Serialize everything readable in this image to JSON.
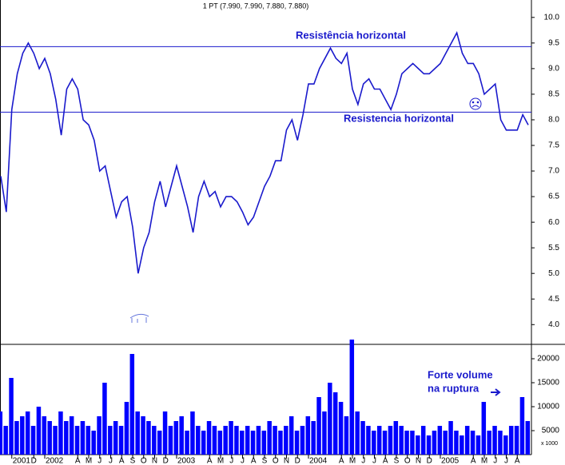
{
  "chart_data": [
    {
      "type": "line",
      "title": "1 PT (7.990, 7.990, 7.880, 7.880)",
      "color": "#1a1acc",
      "values": [
        6.9,
        6.2,
        8.2,
        8.9,
        9.3,
        9.5,
        9.3,
        9.0,
        9.2,
        8.9,
        8.4,
        7.7,
        8.6,
        8.8,
        8.6,
        8.0,
        7.9,
        7.6,
        7.0,
        7.1,
        6.6,
        6.1,
        6.4,
        6.5,
        5.9,
        5.0,
        5.5,
        5.8,
        6.4,
        6.8,
        6.3,
        6.7,
        7.1,
        6.7,
        6.3,
        5.8,
        6.5,
        6.8,
        6.5,
        6.6,
        6.3,
        6.5,
        6.5,
        6.4,
        6.2,
        5.95,
        6.1,
        6.4,
        6.7,
        6.9,
        7.2,
        7.2,
        7.8,
        8.0,
        7.6,
        8.1,
        8.7,
        8.7,
        9.0,
        9.2,
        9.4,
        9.2,
        9.1,
        9.3,
        8.6,
        8.3,
        8.7,
        8.8,
        8.6,
        8.6,
        8.4,
        8.2,
        8.5,
        8.9,
        9.0,
        9.1,
        9.0,
        8.9,
        8.9,
        9.0,
        9.1,
        9.3,
        9.5,
        9.7,
        9.3,
        9.1,
        9.1,
        8.9,
        8.5,
        8.6,
        8.7,
        8.0,
        7.8,
        7.8,
        7.8,
        8.1,
        7.9
      ],
      "ylim": [
        3.63,
        10.34
      ],
      "yticks": [
        {
          "value": 4,
          "label": "4.0"
        },
        4.5,
        {
          "value": 5,
          "label": "5.0"
        },
        5.5,
        {
          "value": 6,
          "label": "6.0"
        },
        6.5,
        {
          "value": 7,
          "label": "7.0"
        },
        7.5,
        {
          "value": 8,
          "label": "8.0"
        },
        8.5,
        {
          "value": 9,
          "label": "9.0"
        },
        9.5,
        {
          "value": 10,
          "label": "10.0"
        }
      ],
      "hlines": [
        9.43,
        8.15
      ],
      "annotations": [
        "Resistência horizontal",
        "Resistencia horizontal"
      ]
    },
    {
      "type": "bar",
      "color": "#0000ff",
      "categories": [
        null,
        null,
        "2001",
        null,
        null,
        null,
        "D",
        null,
        "2002",
        null,
        null,
        null,
        null,
        null,
        "A",
        null,
        "M",
        null,
        "J",
        null,
        "J",
        null,
        "A",
        null,
        "S",
        null,
        "O",
        null,
        "N",
        null,
        "D",
        null,
        "2003",
        null,
        null,
        null,
        null,
        null,
        "A",
        null,
        "M",
        null,
        "J",
        null,
        "J",
        null,
        "A",
        null,
        "S",
        null,
        "O",
        null,
        "N",
        null,
        "D",
        null,
        "2004",
        null,
        null,
        null,
        null,
        null,
        "A",
        null,
        "M",
        null,
        "J",
        null,
        "J",
        null,
        "A",
        null,
        "S",
        null,
        "O",
        null,
        "N",
        null,
        "D",
        null,
        "2005",
        null,
        null,
        null,
        null,
        null,
        "A",
        null,
        "M",
        null,
        "J",
        null,
        "J",
        null,
        "A",
        null,
        null
      ],
      "values": [
        9000,
        6000,
        16000,
        7000,
        8000,
        9000,
        6000,
        10000,
        8000,
        7000,
        6000,
        9000,
        7000,
        8000,
        6000,
        7000,
        6000,
        5000,
        8000,
        15000,
        6000,
        7000,
        6000,
        11000,
        21000,
        9000,
        8000,
        7000,
        6000,
        5000,
        9000,
        6000,
        7000,
        8000,
        5000,
        9000,
        6000,
        5000,
        7000,
        6000,
        5000,
        6000,
        7000,
        6000,
        5000,
        6000,
        5000,
        6000,
        5000,
        7000,
        6000,
        5000,
        6000,
        8000,
        5000,
        6000,
        8000,
        7000,
        12000,
        9000,
        15000,
        13000,
        11000,
        8000,
        24000,
        9000,
        7000,
        6000,
        5000,
        6000,
        5000,
        6000,
        7000,
        6000,
        5000,
        5000,
        4000,
        6000,
        4000,
        5000,
        6000,
        5000,
        7000,
        5000,
        4000,
        6000,
        5000,
        4000,
        11000,
        5000,
        6000,
        5000,
        4000,
        6000,
        6000,
        12000,
        7000
      ],
      "ylim": [
        0,
        23000
      ],
      "yticks": [
        5000,
        10000,
        15000,
        20000
      ],
      "unit_label": "x 1000",
      "annotations": [
        "Forte volume",
        "na ruptura"
      ]
    }
  ]
}
